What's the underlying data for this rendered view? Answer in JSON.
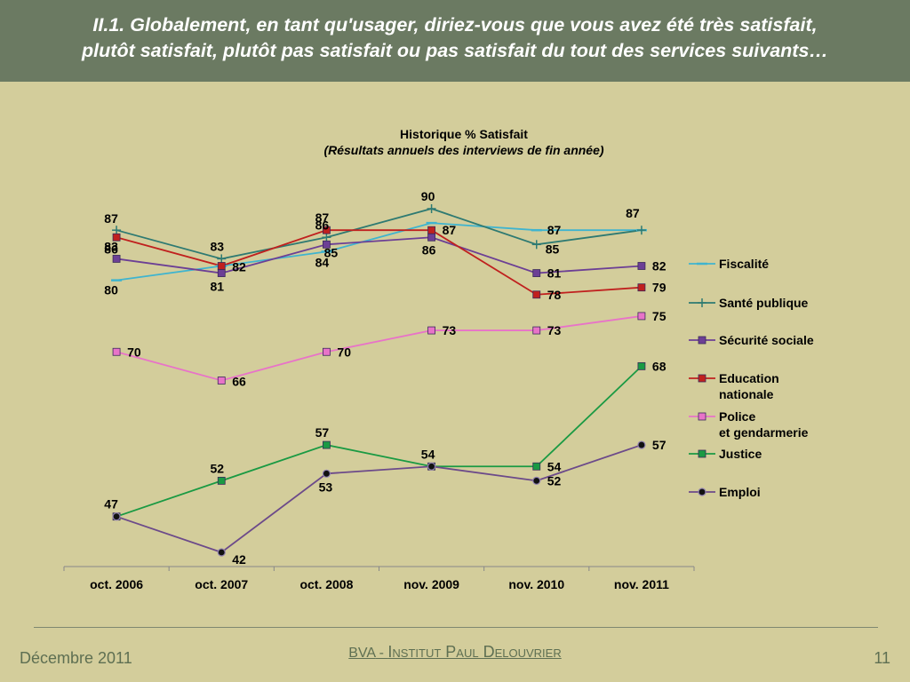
{
  "header": {
    "line1": "II.1. Globalement, en tant qu'usager, diriez-vous que vous avez été très satisfait,",
    "line2": "plutôt satisfait, plutôt pas satisfait ou pas satisfait du tout des services suivants…"
  },
  "chart_data": {
    "type": "line",
    "title": "Historique % Satisfait",
    "subtitle": "(Résultats annuels des interviews de fin année)",
    "categories": [
      "oct. 2006",
      "oct. 2007",
      "oct. 2008",
      "nov. 2009",
      "nov. 2010",
      "nov. 2011"
    ],
    "ylim": [
      38,
      94
    ],
    "grid": false,
    "legend_position": "right",
    "series": [
      {
        "name": "Fiscalité",
        "values": [
          80,
          82,
          84,
          88,
          87,
          87
        ],
        "color": "#3fb4cf",
        "marker": "dash"
      },
      {
        "name": "Santé publique",
        "values": [
          87,
          83,
          86,
          90,
          85,
          87
        ],
        "color": "#2e7a72",
        "marker": "plus"
      },
      {
        "name": "Sécurité sociale",
        "values": [
          83,
          81,
          85,
          86,
          81,
          82
        ],
        "color": "#6c3f95",
        "marker": "square"
      },
      {
        "name": "Education nationale",
        "values": [
          86,
          82,
          87,
          87,
          78,
          79
        ],
        "color": "#c0201e",
        "marker": "square"
      },
      {
        "name": "Police et gendarmerie",
        "values": [
          70,
          66,
          70,
          73,
          73,
          75
        ],
        "color": "#e873c8",
        "marker": "square"
      },
      {
        "name": "Justice",
        "values": [
          47,
          52,
          57,
          54,
          54,
          68
        ],
        "color": "#1a9a43",
        "marker": "square"
      },
      {
        "name": "Emploi",
        "values": [
          47,
          42,
          53,
          54,
          52,
          57
        ],
        "color": "#6c4a8a",
        "marker": "circle"
      }
    ]
  },
  "footer": {
    "date": "Décembre 2011",
    "org_bva": "BVA",
    "org_sep": " - ",
    "org_institute": "Institut Paul Delouvrier",
    "page": "11"
  }
}
